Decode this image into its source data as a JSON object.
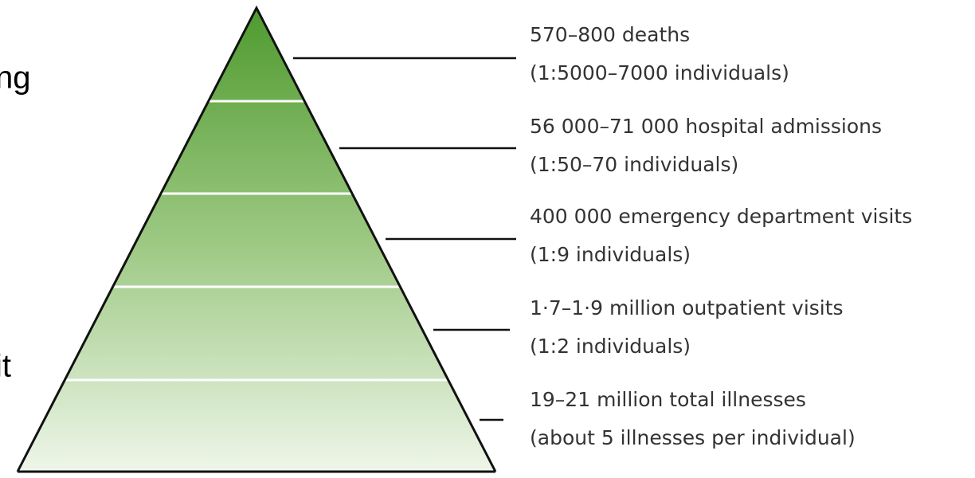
{
  "fragments": [
    "ng",
    "it"
  ],
  "levels": [
    {
      "label": "570–800 deaths",
      "detail": "(1:5000–7000 individuals)"
    },
    {
      "label": "56 000–71 000 hospital admissions",
      "detail": "(1:50–70 individuals)"
    },
    {
      "label": "400 000 emergency department visits",
      "detail": "(1:9 individuals)"
    },
    {
      "label": "1·7–1·9 million outpatient visits",
      "detail": "(1:2 individuals)"
    },
    {
      "label": "19–21 million total illnesses",
      "detail": "(about 5 illnesses per individual)"
    }
  ]
}
